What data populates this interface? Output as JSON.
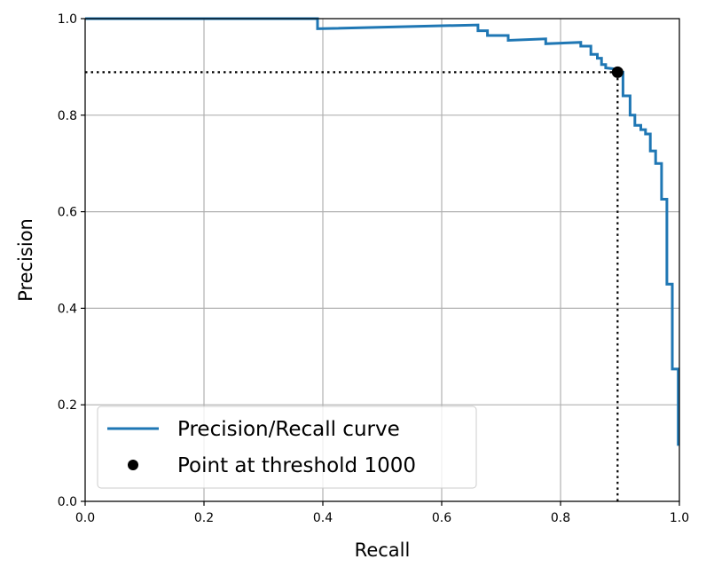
{
  "chart_data": {
    "type": "line",
    "xlabel": "Recall",
    "ylabel": "Precision",
    "xlim": [
      0.0,
      1.0
    ],
    "ylim": [
      0.0,
      1.0
    ],
    "grid": true,
    "xticks": [
      "0.0",
      "0.2",
      "0.4",
      "0.6",
      "0.8",
      "1.0"
    ],
    "yticks": [
      "0.0",
      "0.2",
      "0.4",
      "0.6",
      "0.8",
      "1.0"
    ],
    "legend_position": "lower-left",
    "series": [
      {
        "name": "Precision/Recall curve",
        "color": "#1f77b4",
        "style": "step",
        "points": [
          [
            0.0,
            1.0
          ],
          [
            0.391,
            1.0
          ],
          [
            0.391,
            0.979
          ],
          [
            0.661,
            0.987
          ],
          [
            0.661,
            0.975
          ],
          [
            0.677,
            0.975
          ],
          [
            0.677,
            0.965
          ],
          [
            0.712,
            0.965
          ],
          [
            0.712,
            0.955
          ],
          [
            0.775,
            0.958
          ],
          [
            0.775,
            0.948
          ],
          [
            0.834,
            0.951
          ],
          [
            0.834,
            0.943
          ],
          [
            0.851,
            0.943
          ],
          [
            0.851,
            0.926
          ],
          [
            0.862,
            0.926
          ],
          [
            0.862,
            0.918
          ],
          [
            0.869,
            0.918
          ],
          [
            0.869,
            0.905
          ],
          [
            0.876,
            0.905
          ],
          [
            0.876,
            0.898
          ],
          [
            0.89,
            0.896
          ],
          [
            0.895,
            0.889
          ],
          [
            0.905,
            0.889
          ],
          [
            0.905,
            0.84
          ],
          [
            0.917,
            0.84
          ],
          [
            0.917,
            0.8
          ],
          [
            0.925,
            0.8
          ],
          [
            0.925,
            0.779
          ],
          [
            0.935,
            0.779
          ],
          [
            0.935,
            0.77
          ],
          [
            0.943,
            0.77
          ],
          [
            0.943,
            0.761
          ],
          [
            0.951,
            0.761
          ],
          [
            0.951,
            0.726
          ],
          [
            0.96,
            0.726
          ],
          [
            0.96,
            0.7
          ],
          [
            0.97,
            0.7
          ],
          [
            0.97,
            0.626
          ],
          [
            0.979,
            0.626
          ],
          [
            0.979,
            0.45
          ],
          [
            0.988,
            0.45
          ],
          [
            0.988,
            0.274
          ],
          [
            0.998,
            0.274
          ],
          [
            0.998,
            0.115
          ]
        ]
      },
      {
        "name": "Point at threshold 1000",
        "color": "#000000",
        "style": "marker",
        "points": [
          [
            0.896,
            0.889
          ]
        ]
      }
    ],
    "guide_lines": {
      "x": 0.896,
      "y": 0.889,
      "style": "dotted",
      "color": "#000000"
    }
  }
}
